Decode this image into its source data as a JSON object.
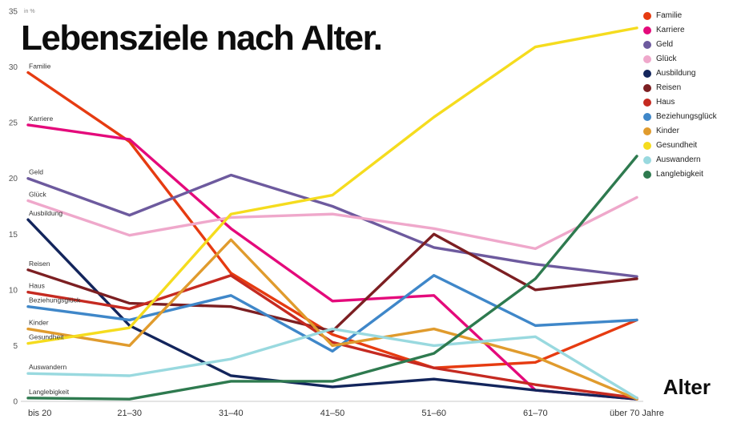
{
  "chart_data": {
    "type": "line",
    "title": "Lebensziele nach Alter.",
    "unit_label": "in %",
    "x_axis_label": "Alter",
    "categories": [
      "bis 20",
      "21–30",
      "31–40",
      "41–50",
      "51–60",
      "61–70",
      "über 70 Jahre"
    ],
    "y_ticks": [
      0,
      5,
      10,
      15,
      20,
      25,
      30,
      35
    ],
    "ylim": [
      0,
      35
    ],
    "grid": false,
    "legend_position": "top-right",
    "series": [
      {
        "name": "Familie",
        "color": "#e63b11",
        "values": [
          29.5,
          23.3,
          11.5,
          6.0,
          3.0,
          3.5,
          7.3
        ]
      },
      {
        "name": "Karriere",
        "color": "#e40a7b",
        "values": [
          24.8,
          23.5,
          15.5,
          9.0,
          9.5,
          1.0,
          0.2
        ]
      },
      {
        "name": "Geld",
        "color": "#6d5a9e",
        "values": [
          20.0,
          16.7,
          20.3,
          17.5,
          13.8,
          12.3,
          11.2
        ]
      },
      {
        "name": "Glück",
        "color": "#efa8cb",
        "values": [
          18.0,
          14.9,
          16.5,
          16.8,
          15.5,
          13.7,
          18.3
        ]
      },
      {
        "name": "Ausbildung",
        "color": "#13255c",
        "values": [
          16.3,
          6.8,
          2.3,
          1.3,
          2.0,
          1.0,
          0.2
        ]
      },
      {
        "name": "Reisen",
        "color": "#7c1f22",
        "values": [
          11.8,
          8.8,
          8.5,
          6.3,
          15.0,
          10.0,
          11.0
        ]
      },
      {
        "name": "Haus",
        "color": "#c52a21",
        "values": [
          9.8,
          8.3,
          11.3,
          5.3,
          3.0,
          1.5,
          0.3
        ]
      },
      {
        "name": "Beziehungsglück",
        "color": "#3f87c9",
        "values": [
          8.5,
          7.3,
          9.5,
          4.5,
          11.3,
          6.8,
          7.3
        ]
      },
      {
        "name": "Kinder",
        "color": "#e09b2d",
        "values": [
          6.5,
          5.0,
          14.5,
          5.0,
          6.5,
          4.0,
          0.2
        ]
      },
      {
        "name": "Gesundheit",
        "color": "#f5dc1e",
        "values": [
          5.2,
          6.6,
          16.8,
          18.5,
          25.5,
          31.8,
          33.5
        ]
      },
      {
        "name": "Auswandern",
        "color": "#99d9df",
        "values": [
          2.5,
          2.3,
          3.8,
          6.5,
          5.0,
          5.8,
          0.3
        ]
      },
      {
        "name": "Langlebigkeit",
        "color": "#2e7a4f",
        "values": [
          0.3,
          0.2,
          1.8,
          1.8,
          4.3,
          11.0,
          22.0
        ]
      }
    ]
  }
}
